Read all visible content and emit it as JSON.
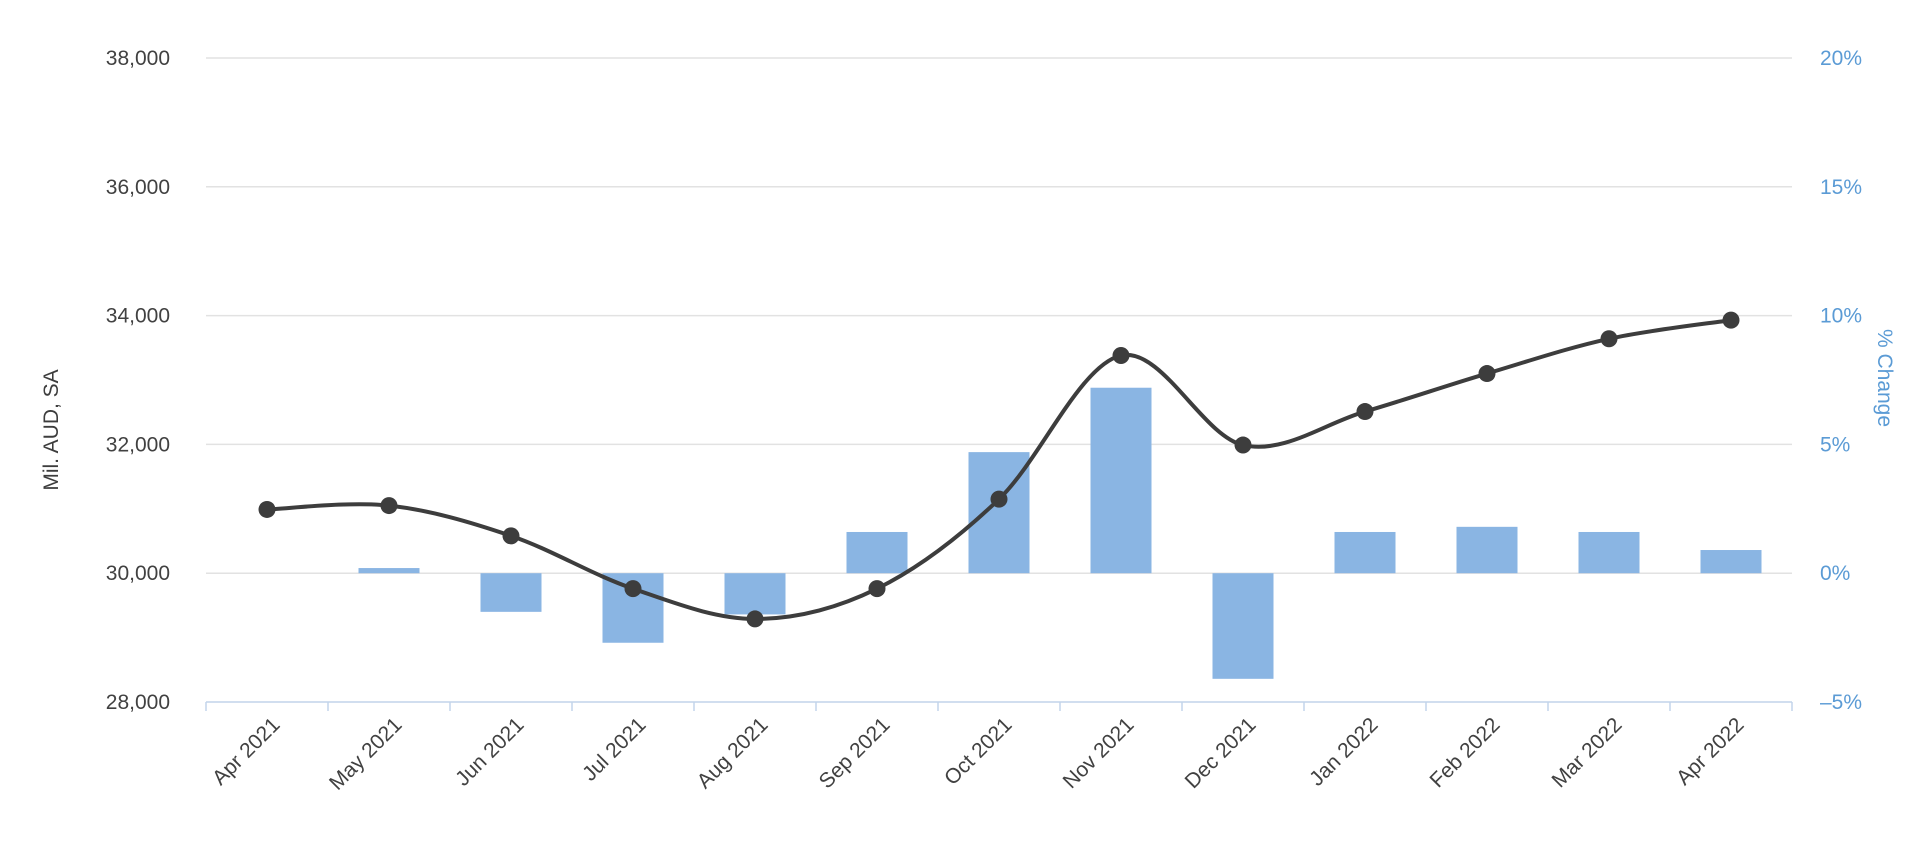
{
  "colors": {
    "background": "#ffffff",
    "gridline": "#e2e2e2",
    "axis_line": "#c2d4ea",
    "bar": "#8ab5e3",
    "line": "#3d3d3d",
    "left_text": "#414141",
    "right_text": "#5b9bd5"
  },
  "chart_data": {
    "type": "combo",
    "title": "",
    "legend": "none",
    "grid": true,
    "x_tick_label_rotation": -45,
    "categories": [
      "Apr 2021",
      "May 2021",
      "Jun 2021",
      "Jul 2021",
      "Aug 2021",
      "Sep 2021",
      "Oct 2021",
      "Nov 2021",
      "Dec 2021",
      "Jan 2022",
      "Feb 2022",
      "Mar 2022",
      "Apr 2022"
    ],
    "series": [
      {
        "name": "Mil. AUD, SA",
        "type": "line",
        "axis": "left",
        "color": "#3d3d3d",
        "marker_color": "#3d3d3d",
        "values": [
          30990,
          31050,
          30580,
          29760,
          29290,
          29760,
          31150,
          33380,
          31990,
          32510,
          33100,
          33640,
          33930
        ]
      },
      {
        "name": "% Change",
        "type": "bar",
        "axis": "right",
        "color": "#8ab5e3",
        "values": [
          null,
          0.2,
          -1.5,
          -2.7,
          -1.6,
          1.6,
          4.7,
          7.2,
          -4.1,
          1.6,
          1.8,
          1.6,
          0.9
        ]
      }
    ],
    "left_axis": {
      "label": "Mil. AUD, SA",
      "min": 28000,
      "max": 38000,
      "tick_step": 2000,
      "ticks": [
        {
          "value": 38000,
          "label": "38,000"
        },
        {
          "value": 36000,
          "label": "36,000"
        },
        {
          "value": 34000,
          "label": "34,000"
        },
        {
          "value": 32000,
          "label": "32,000"
        },
        {
          "value": 30000,
          "label": "30,000"
        },
        {
          "value": 28000,
          "label": "28,000"
        }
      ]
    },
    "right_axis": {
      "label": "% Change",
      "min": -5,
      "max": 20,
      "tick_step": 5,
      "ticks": [
        {
          "value": 20,
          "label": "20%"
        },
        {
          "value": 15,
          "label": "15%"
        },
        {
          "value": 10,
          "label": "10%"
        },
        {
          "value": 5,
          "label": "5%"
        },
        {
          "value": 0,
          "label": "0%"
        },
        {
          "value": -5,
          "label": "–5%"
        }
      ]
    }
  }
}
